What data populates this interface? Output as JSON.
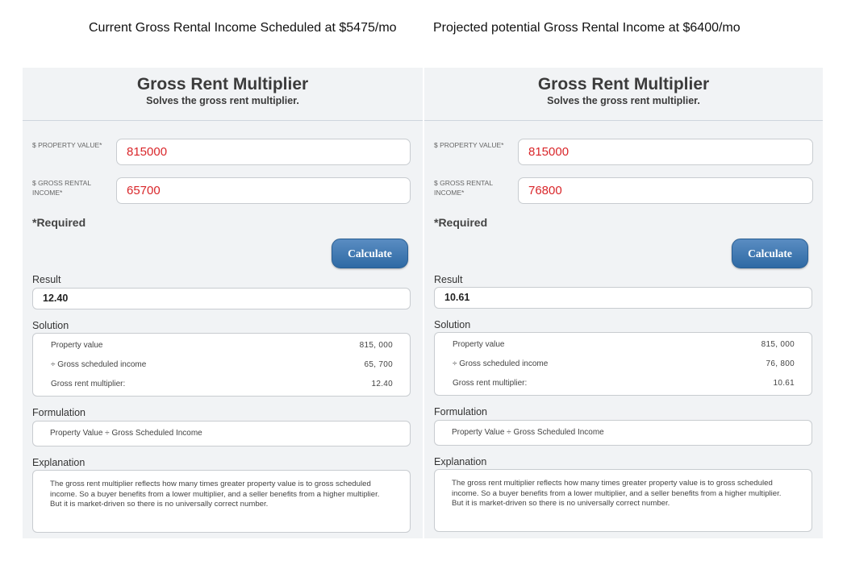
{
  "captions": {
    "left": "Current Gross Rental Income Scheduled at $5475/mo",
    "right": "Projected potential Gross Rental Income at $6400/mo"
  },
  "panels": [
    {
      "title": "Gross Rent Multiplier",
      "subtitle": "Solves the gross rent multiplier.",
      "property_value_label": "$ PROPERTY VALUE*",
      "property_value": "815000",
      "gross_income_label": "$ GROSS RENTAL INCOME*",
      "gross_income": "65700",
      "required_note": "*Required",
      "calculate_label": "Calculate",
      "result_label": "Result",
      "result_value": "12.40",
      "solution_label": "Solution",
      "solution_rows": [
        {
          "label": "Property value",
          "value": "815, 000"
        },
        {
          "label": "÷ Gross scheduled income",
          "value": "65, 700"
        },
        {
          "label": "Gross rent multiplier:",
          "value": "12.40"
        }
      ],
      "formulation_label": "Formulation",
      "formulation_text": "Property Value ÷ Gross Scheduled Income",
      "explanation_label": "Explanation",
      "explanation_text": "The gross rent multiplier reflects how many times greater property value is to gross scheduled income. So a buyer benefits from a lower multiplier, and a seller benefits from a higher multiplier. But it is market-driven so there is no universally correct number."
    },
    {
      "title": "Gross Rent Multiplier",
      "subtitle": "Solves the gross rent multiplier.",
      "property_value_label": "$ PROPERTY VALUE*",
      "property_value": "815000",
      "gross_income_label": "$ GROSS RENTAL INCOME*",
      "gross_income": "76800",
      "required_note": "*Required",
      "calculate_label": "Calculate",
      "result_label": "Result",
      "result_value": "10.61",
      "solution_label": "Solution",
      "solution_rows": [
        {
          "label": "Property value",
          "value": "815, 000"
        },
        {
          "label": "÷ Gross scheduled income",
          "value": "76, 800"
        },
        {
          "label": "Gross rent multiplier:",
          "value": "10.61"
        }
      ],
      "formulation_label": "Formulation",
      "formulation_text": "Property Value ÷ Gross Scheduled Income",
      "explanation_label": "Explanation",
      "explanation_text": "The gross rent multiplier reflects how many times greater property value is to gross scheduled income. So a buyer benefits from a lower multiplier, and a seller benefits from a higher multiplier. But it is market-driven so there is no universally correct number."
    }
  ]
}
